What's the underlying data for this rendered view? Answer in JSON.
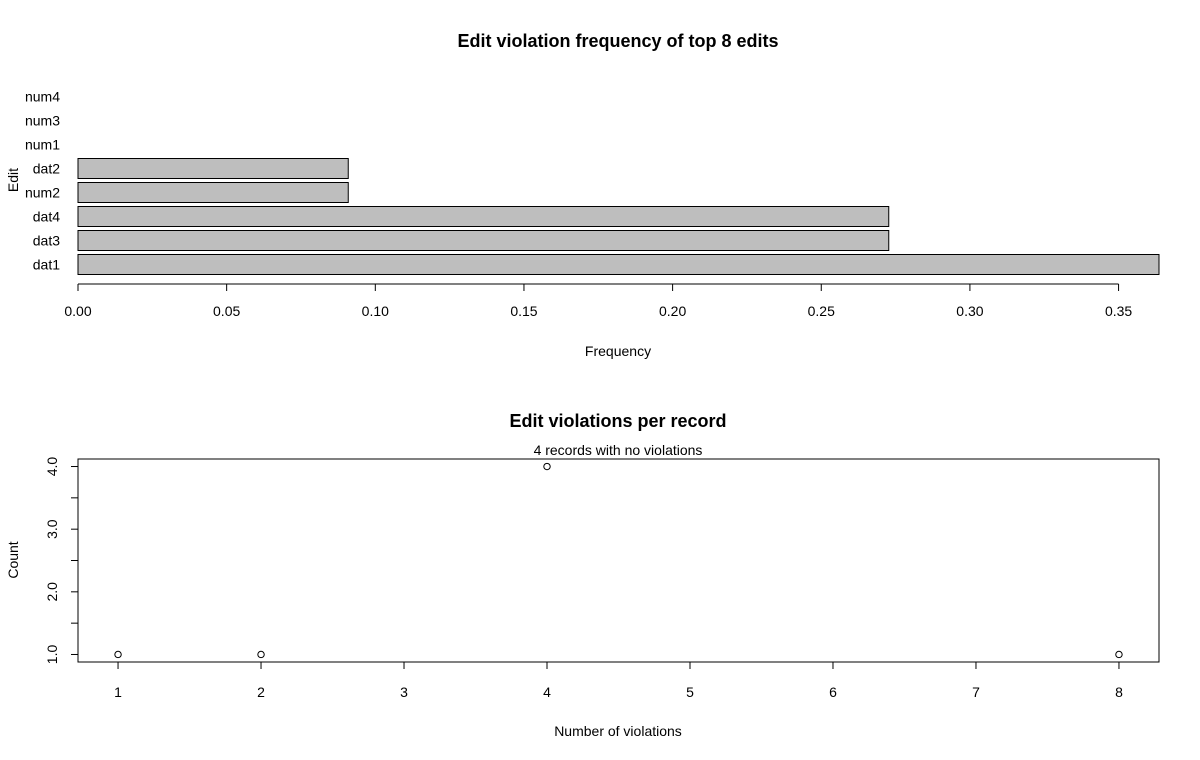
{
  "chart_data": [
    {
      "type": "bar",
      "orientation": "horizontal",
      "title": "Edit violation frequency of top 8 edits",
      "xlabel": "Frequency",
      "ylabel": "Edit",
      "categories": [
        "dat1",
        "dat3",
        "dat4",
        "num2",
        "dat2",
        "num1",
        "num3",
        "num4"
      ],
      "values": [
        0.3636,
        0.2727,
        0.2727,
        0.0909,
        0.0909,
        0,
        0,
        0
      ],
      "xlim": [
        0,
        0.3636
      ],
      "xticks": [
        0.0,
        0.05,
        0.1,
        0.15,
        0.2,
        0.25,
        0.3,
        0.35
      ],
      "xtick_labels": [
        "0.00",
        "0.05",
        "0.10",
        "0.15",
        "0.20",
        "0.25",
        "0.30",
        "0.35"
      ],
      "bar_color": "#bebebe"
    },
    {
      "type": "scatter",
      "title": "Edit violations per record",
      "subtitle": "4 records with no violations",
      "xlabel": "Number of violations",
      "ylabel": "Count",
      "x": [
        1,
        2,
        4,
        8
      ],
      "y": [
        1,
        1,
        4,
        1
      ],
      "xlim": [
        0.72,
        8.28
      ],
      "ylim": [
        0.88,
        4.12
      ],
      "xticks": [
        1,
        2,
        3,
        4,
        5,
        6,
        7,
        8
      ],
      "xtick_labels": [
        "1",
        "2",
        "3",
        "4",
        "5",
        "6",
        "7",
        "8"
      ],
      "yticks": [
        1.0,
        1.5,
        2.0,
        2.5,
        3.0,
        3.5,
        4.0
      ],
      "ytick_labels": [
        "1.0",
        "",
        "2.0",
        "",
        "3.0",
        "",
        "4.0"
      ]
    }
  ]
}
